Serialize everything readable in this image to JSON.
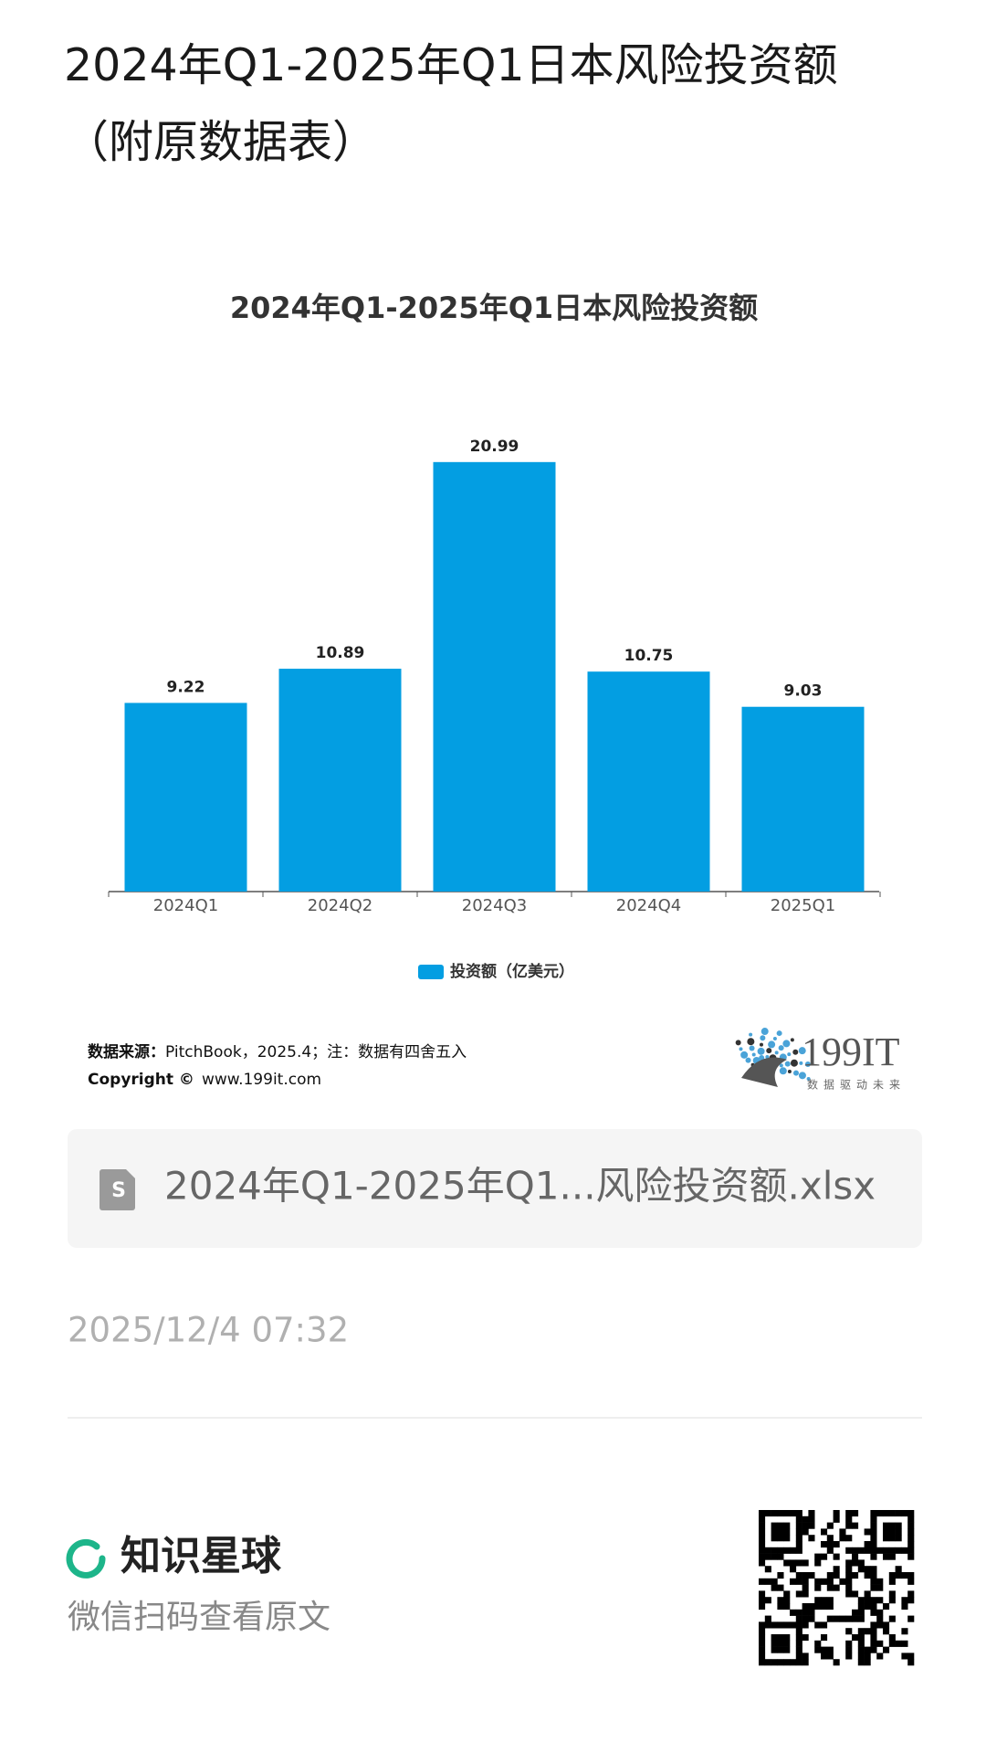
{
  "header": {
    "title": "2024年Q1-2025年Q1日本风险投资额（附原数据表）"
  },
  "chart_data": {
    "type": "bar",
    "title": "2024年Q1-2025年Q1日本风险投资额",
    "categories": [
      "2024Q1",
      "2024Q2",
      "2024Q3",
      "2024Q4",
      "2025Q1"
    ],
    "series": [
      {
        "name": "投资额（亿美元）",
        "color": "#039ee2",
        "values": [
          9.22,
          10.89,
          20.99,
          10.75,
          9.03
        ]
      }
    ]
  },
  "source": {
    "label": "数据来源：",
    "text": "PitchBook，2025.4；注：数据有四舍五入"
  },
  "copyright": {
    "label": "Copyright ©",
    "text": "www.199it.com"
  },
  "logo": {
    "name": "199IT",
    "tagline": "数据驱动未来"
  },
  "file": {
    "name": "2024年Q1-2025年Q1...风险投资额.xlsx"
  },
  "date": "2025/12/4 07:32",
  "footer": {
    "brand": "知识星球",
    "hint": "微信扫码查看原文"
  }
}
